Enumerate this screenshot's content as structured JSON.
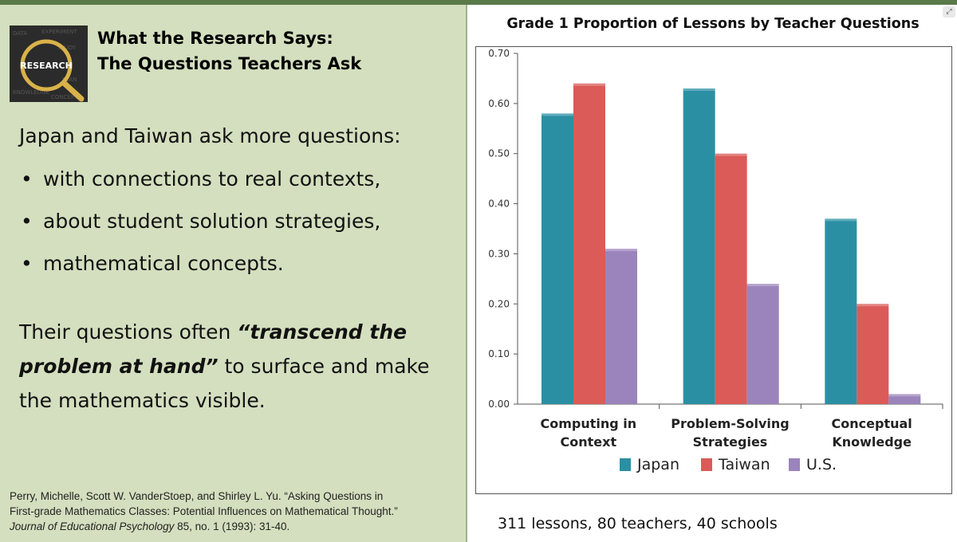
{
  "slide": {
    "logo_text": "RESEARCH",
    "heading_line1": "What the Research Says:",
    "heading_line2": "The Questions Teachers Ask",
    "intro": "Japan and Taiwan ask more questions:",
    "bullets": [
      "with connections to real contexts,",
      "about student solution strategies,",
      "mathematical concepts."
    ],
    "bullet_symbol": "•",
    "quote_prefix": "Their questions often ",
    "quote_emphasis": "“transcend the problem at hand”",
    "quote_suffix": " to surface and make the mathematics visible.",
    "citation_line1": "Perry, Michelle, Scott W. VanderStoep, and Shirley L. Yu. “Asking Questions in",
    "citation_line2": "First-grade Mathematics Classes: Potential Influences on Mathematical Thought.”",
    "citation_journal": "Journal of Educational Psychology",
    "citation_rest": " 85, no. 1 (1993): 31-40.",
    "footnote": "311 lessons, 80 teachers,  40 schools",
    "corner_icon": "expand-icon"
  },
  "colors": {
    "left_bg": "#d3dfbe",
    "japan": "#2b8fa3",
    "taiwan": "#db5b58",
    "us": "#9b83bb"
  },
  "chart_data": {
    "type": "bar",
    "title": "Grade 1 Proportion of Lessons by Teacher Questions",
    "categories": [
      [
        "Computing in",
        "Context"
      ],
      [
        "Problem-Solving",
        "Strategies"
      ],
      [
        "Conceptual",
        "Knowledge"
      ]
    ],
    "series": [
      {
        "name": "Japan",
        "values": [
          0.58,
          0.63,
          0.37
        ]
      },
      {
        "name": "Taiwan",
        "values": [
          0.64,
          0.5,
          0.2
        ]
      },
      {
        "name": "U.S.",
        "values": [
          0.31,
          0.24,
          0.02
        ]
      }
    ],
    "ylim": [
      0,
      0.7
    ],
    "yticks": [
      "0.00",
      "0.10",
      "0.20",
      "0.30",
      "0.40",
      "0.50",
      "0.60",
      "0.70"
    ],
    "grid": false,
    "legend": "bottom"
  }
}
